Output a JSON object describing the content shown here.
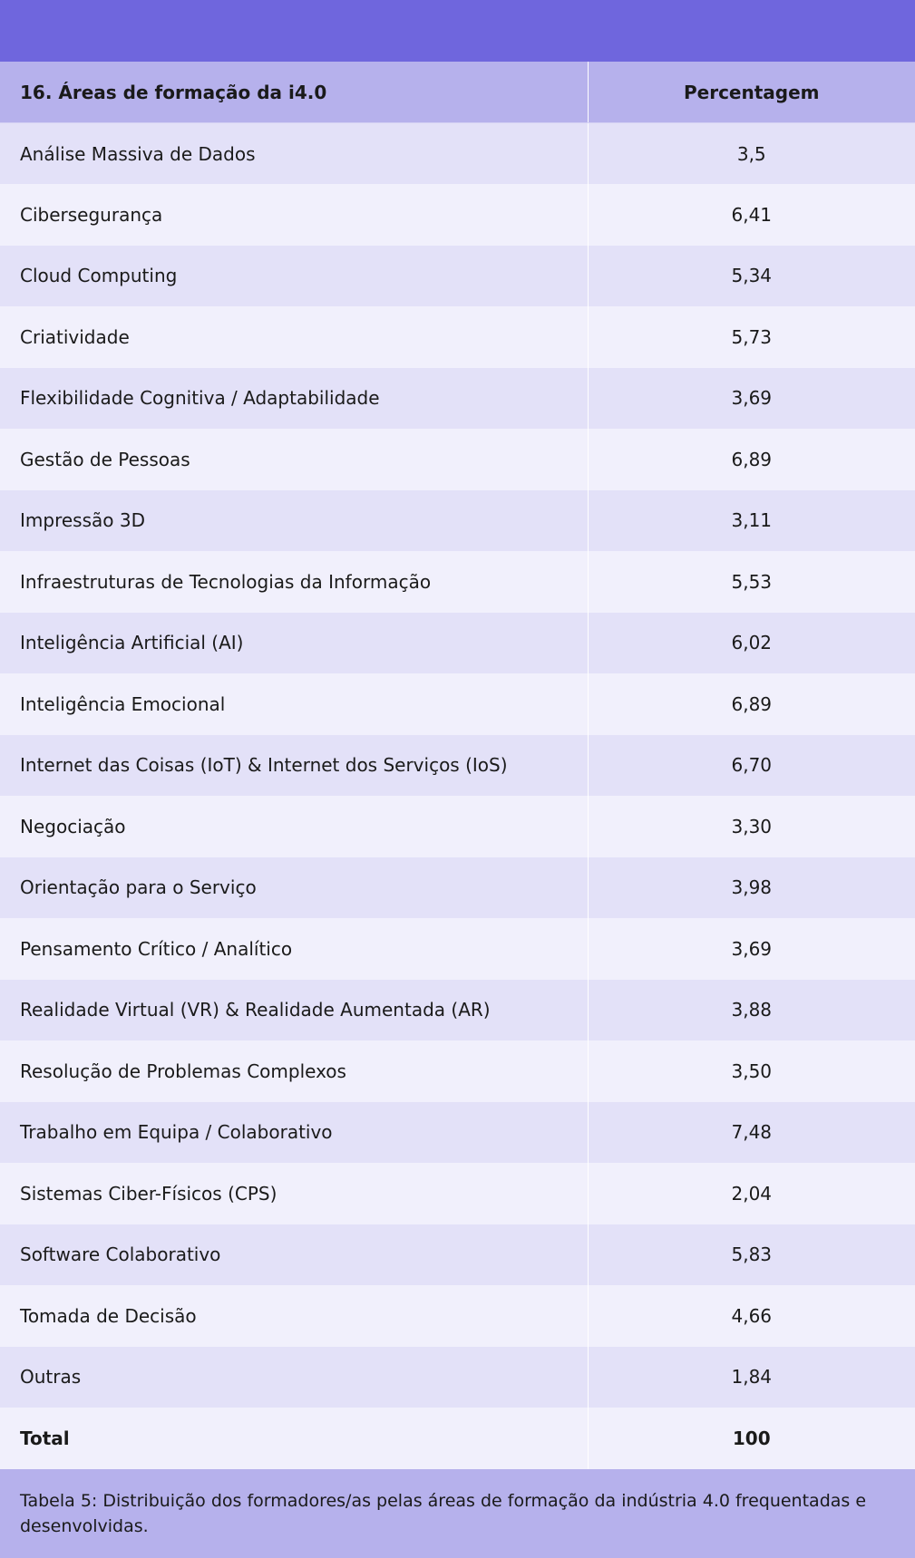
{
  "table": {
    "header": {
      "area": "16. Áreas de formação da i4.0",
      "percentage": "Percentagem"
    },
    "rows": [
      {
        "area": "Análise Massiva de Dados",
        "percentage": "3,5"
      },
      {
        "area": "Cibersegurança",
        "percentage": "6,41"
      },
      {
        "area": "Cloud Computing",
        "percentage": "5,34"
      },
      {
        "area": "Criatividade",
        "percentage": "5,73"
      },
      {
        "area": "Flexibilidade Cognitiva / Adaptabilidade",
        "percentage": "3,69"
      },
      {
        "area": "Gestão de Pessoas",
        "percentage": "6,89"
      },
      {
        "area": "Impressão 3D",
        "percentage": "3,11"
      },
      {
        "area": "Infraestruturas de Tecnologias da Informação",
        "percentage": "5,53"
      },
      {
        "area": "Inteligência Artificial (AI)",
        "percentage": "6,02"
      },
      {
        "area": "Inteligência Emocional",
        "percentage": "6,89"
      },
      {
        "area": "Internet das Coisas (IoT) & Internet dos Serviços (IoS)",
        "percentage": "6,70"
      },
      {
        "area": "Negociação",
        "percentage": "3,30"
      },
      {
        "area": "Orientação para o Serviço",
        "percentage": "3,98"
      },
      {
        "area": "Pensamento Crítico / Analítico",
        "percentage": "3,69"
      },
      {
        "area": "Realidade Virtual (VR) & Realidade Aumentada (AR)",
        "percentage": "3,88"
      },
      {
        "area": "Resolução de Problemas Complexos",
        "percentage": "3,50"
      },
      {
        "area": "Trabalho em Equipa / Colaborativo",
        "percentage": "7,48"
      },
      {
        "area": "Sistemas Ciber-Físicos (CPS)",
        "percentage": "2,04"
      },
      {
        "area": "Software Colaborativo",
        "percentage": "5,83"
      },
      {
        "area": "Tomada de Decisão",
        "percentage": "4,66"
      },
      {
        "area": "Outras",
        "percentage": "1,84"
      }
    ],
    "total": {
      "area": "Total",
      "percentage": "100"
    }
  },
  "caption": "Tabela 5: Distribuição dos formadores/as pelas áreas de formação da indústria 4.0 frequentadas e desenvolvidas.",
  "colors": {
    "top_band": "#6f66dd",
    "header_bg": "#b6b1ec",
    "row_odd": "#e3e1f8",
    "row_even": "#f1f0fc"
  }
}
